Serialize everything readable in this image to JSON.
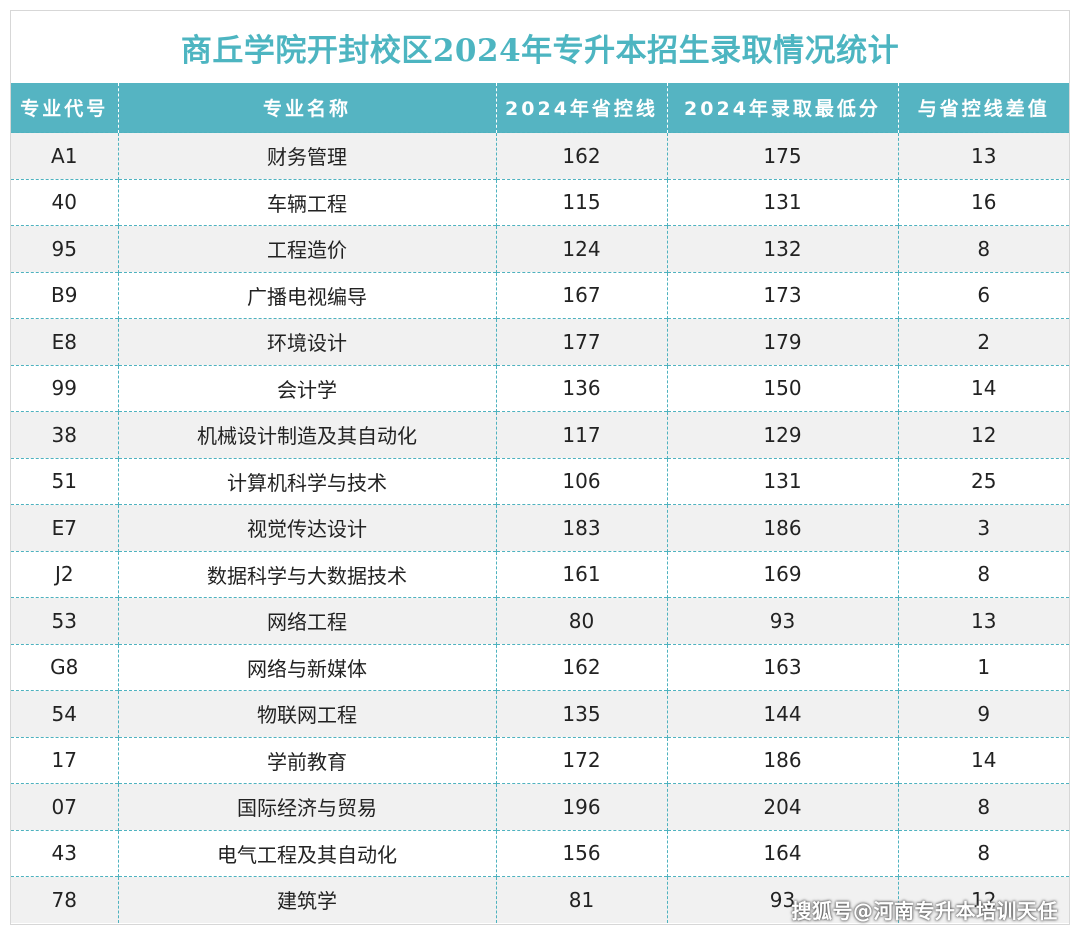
{
  "title": "商丘学院开封校区2024年专升本招生录取情况统计",
  "columns": [
    "专业代号",
    "专业名称",
    "2024年省控线",
    "2024年录取最低分",
    "与省控线差值"
  ],
  "rows": [
    {
      "code": "A1",
      "name": "财务管理",
      "line": "162",
      "min": "175",
      "diff": "13"
    },
    {
      "code": "40",
      "name": "车辆工程",
      "line": "115",
      "min": "131",
      "diff": "16"
    },
    {
      "code": "95",
      "name": "工程造价",
      "line": "124",
      "min": "132",
      "diff": "8"
    },
    {
      "code": "B9",
      "name": "广播电视编导",
      "line": "167",
      "min": "173",
      "diff": "6"
    },
    {
      "code": "E8",
      "name": "环境设计",
      "line": "177",
      "min": "179",
      "diff": "2"
    },
    {
      "code": "99",
      "name": "会计学",
      "line": "136",
      "min": "150",
      "diff": "14"
    },
    {
      "code": "38",
      "name": "机械设计制造及其自动化",
      "line": "117",
      "min": "129",
      "diff": "12"
    },
    {
      "code": "51",
      "name": "计算机科学与技术",
      "line": "106",
      "min": "131",
      "diff": "25"
    },
    {
      "code": "E7",
      "name": "视觉传达设计",
      "line": "183",
      "min": "186",
      "diff": "3"
    },
    {
      "code": "J2",
      "name": "数据科学与大数据技术",
      "line": "161",
      "min": "169",
      "diff": "8"
    },
    {
      "code": "53",
      "name": "网络工程",
      "line": "80",
      "min": "93",
      "diff": "13"
    },
    {
      "code": "G8",
      "name": "网络与新媒体",
      "line": "162",
      "min": "163",
      "diff": "1"
    },
    {
      "code": "54",
      "name": "物联网工程",
      "line": "135",
      "min": "144",
      "diff": "9"
    },
    {
      "code": "17",
      "name": "学前教育",
      "line": "172",
      "min": "186",
      "diff": "14"
    },
    {
      "code": "07",
      "name": "国际经济与贸易",
      "line": "196",
      "min": "204",
      "diff": "8"
    },
    {
      "code": "43",
      "name": "电气工程及其自动化",
      "line": "156",
      "min": "164",
      "diff": "8"
    },
    {
      "code": "78",
      "name": "建筑学",
      "line": "81",
      "min": "93",
      "diff": "12"
    }
  ],
  "watermark": "搜狐号@河南专升本培训天任",
  "colors": {
    "title": "#4db5c1",
    "header_bg": "#55b4c2",
    "border": "#4eb2bf",
    "stripe": "#f1f1f1"
  }
}
